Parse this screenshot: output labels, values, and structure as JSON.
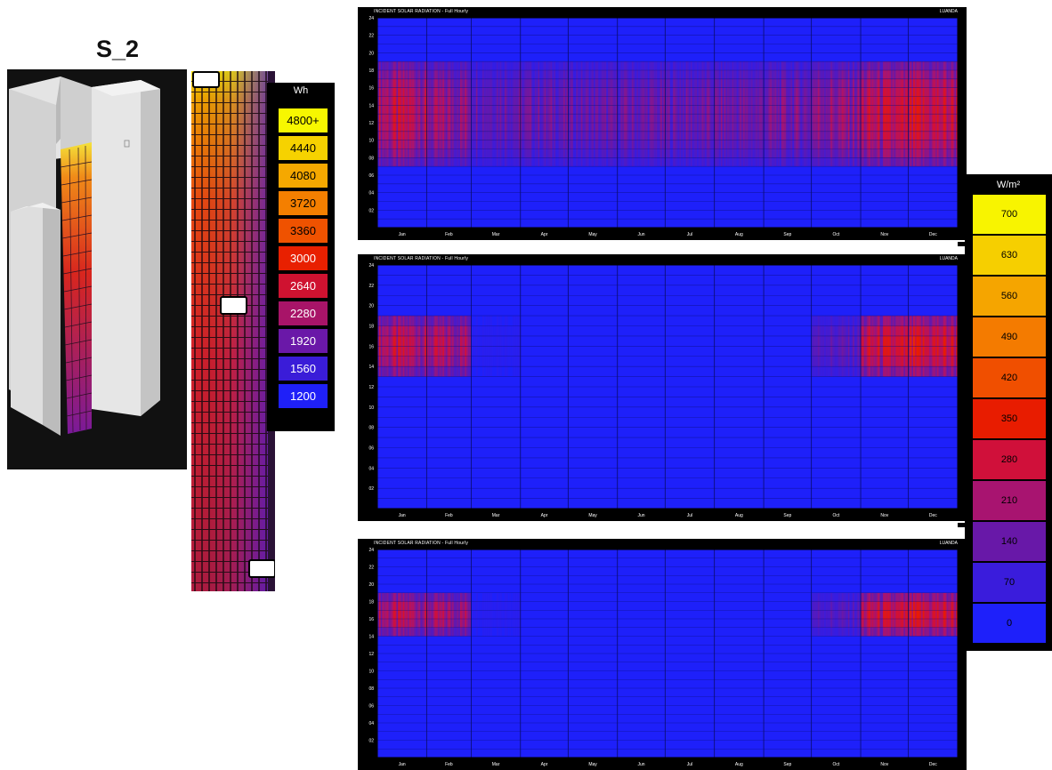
{
  "model": {
    "title": "S_2"
  },
  "wh_legend": {
    "unit": "Wh",
    "levels": [
      {
        "label": "4800+",
        "color": "#f7f700",
        "text": "#000000"
      },
      {
        "label": "4440",
        "color": "#f6d200",
        "text": "#000000"
      },
      {
        "label": "4080",
        "color": "#f5a800",
        "text": "#000000"
      },
      {
        "label": "3720",
        "color": "#f47f00",
        "text": "#000000"
      },
      {
        "label": "3360",
        "color": "#ef5200",
        "text": "#000000"
      },
      {
        "label": "3000",
        "color": "#e82000",
        "text": "#ffffff"
      },
      {
        "label": "2640",
        "color": "#cf1230",
        "text": "#ffffff"
      },
      {
        "label": "2280",
        "color": "#a81468",
        "text": "#ffffff"
      },
      {
        "label": "1920",
        "color": "#6a18a8",
        "text": "#ffffff"
      },
      {
        "label": "1560",
        "color": "#3a1cd8",
        "text": "#ffffff"
      },
      {
        "label": "1200",
        "color": "#1f20f8",
        "text": "#ffffff"
      }
    ]
  },
  "wm_legend": {
    "unit": "W/m²",
    "levels": [
      {
        "label": "700",
        "color": "#f8f400",
        "text": "#000000"
      },
      {
        "label": "630",
        "color": "#f6cf00",
        "text": "#000000"
      },
      {
        "label": "560",
        "color": "#f5a500",
        "text": "#000000"
      },
      {
        "label": "490",
        "color": "#f47b00",
        "text": "#000000"
      },
      {
        "label": "420",
        "color": "#f04f00",
        "text": "#000000"
      },
      {
        "label": "350",
        "color": "#e81c00",
        "text": "#000000"
      },
      {
        "label": "280",
        "color": "#d0103a",
        "text": "#000000"
      },
      {
        "label": "210",
        "color": "#a81470",
        "text": "#000000"
      },
      {
        "label": "140",
        "color": "#6818a8",
        "text": "#000000"
      },
      {
        "label": "70",
        "color": "#3a1cdc",
        "text": "#000000"
      },
      {
        "label": "0",
        "color": "#1e20fa",
        "text": "#000000"
      }
    ]
  },
  "chart_data": [
    {
      "type": "heatmap",
      "title": "INCIDENT SOLAR RADIATION - Full Hourly",
      "location": "LUANDA",
      "x": [
        "Jan",
        "Feb",
        "Mar",
        "Apr",
        "May",
        "Jun",
        "Jul",
        "Aug",
        "Sep",
        "Oct",
        "Nov",
        "Dec"
      ],
      "y_ticks": [
        "24",
        "22",
        "20",
        "18",
        "16",
        "14",
        "12",
        "10",
        "08",
        "06",
        "04",
        "02"
      ],
      "unit": "W/m²",
      "hour_range": [
        7,
        18
      ],
      "monthly_peak_wm2": [
        330,
        260,
        200,
        190,
        180,
        190,
        190,
        200,
        210,
        260,
        330,
        360
      ]
    },
    {
      "type": "heatmap",
      "title": "INCIDENT SOLAR RADIATION - Full Hourly",
      "location": "LUANDA",
      "x": [
        "Jan",
        "Feb",
        "Mar",
        "Apr",
        "May",
        "Jun",
        "Jul",
        "Aug",
        "Sep",
        "Oct",
        "Nov",
        "Dec"
      ],
      "y_ticks": [
        "24",
        "22",
        "20",
        "18",
        "16",
        "14",
        "12",
        "10",
        "08",
        "06",
        "04",
        "02"
      ],
      "unit": "W/m²",
      "hour_range": [
        13,
        18
      ],
      "monthly_peak_wm2": [
        330,
        300,
        40,
        0,
        0,
        0,
        0,
        0,
        0,
        160,
        350,
        380
      ]
    },
    {
      "type": "heatmap",
      "title": "INCIDENT SOLAR RADIATION - Full Hourly",
      "location": "LUANDA",
      "x": [
        "Jan",
        "Feb",
        "Mar",
        "Apr",
        "May",
        "Jun",
        "Jul",
        "Aug",
        "Sep",
        "Oct",
        "Nov",
        "Dec"
      ],
      "y_ticks": [
        "24",
        "22",
        "20",
        "18",
        "16",
        "14",
        "12",
        "10",
        "08",
        "06",
        "04",
        "02"
      ],
      "unit": "W/m²",
      "hour_range": [
        14,
        18
      ],
      "monthly_peak_wm2": [
        310,
        280,
        40,
        0,
        0,
        0,
        0,
        0,
        0,
        150,
        340,
        370
      ]
    }
  ]
}
